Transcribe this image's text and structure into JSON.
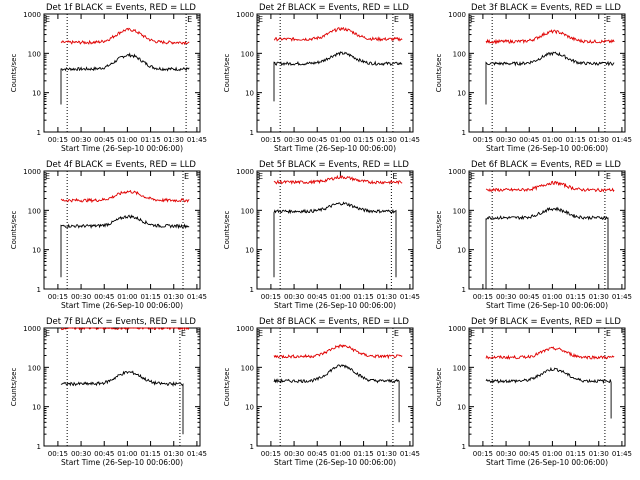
{
  "colors": {
    "events": "#000000",
    "lld": "#e00000",
    "axes": "#000000"
  },
  "chart_data": [
    {
      "type": "line",
      "title": "Det 1f BLACK = Events, RED = LLD",
      "xlabel": "Start Time (26-Sep-10 00:06:00)",
      "ylabel": "Counts/sec",
      "xticks": [
        "00:15",
        "00:30",
        "00:45",
        "01:00",
        "01:15",
        "01:30",
        "01:45"
      ],
      "yticks": [
        "1",
        "10",
        "100",
        "1000"
      ],
      "yscale": "log",
      "ylim": [
        1,
        1000
      ],
      "xlim_minutes": [
        6,
        107
      ],
      "vlines_minutes": [
        21,
        98
      ],
      "annotation_left": "E",
      "annotation_right": "E",
      "series": [
        {
          "name": "Events",
          "baseline": 40,
          "bump": 90,
          "start": 17,
          "end": 100,
          "drop_start": 5,
          "drop_end": null
        },
        {
          "name": "LLD",
          "baseline": 190,
          "bump": 400,
          "start": 17,
          "end": 100,
          "drop_start": null,
          "drop_end": null
        }
      ]
    },
    {
      "type": "line",
      "title": "Det 2f BLACK = Events, RED = LLD",
      "xlabel": "Start Time (26-Sep-10 00:06:00)",
      "ylabel": "Counts/sec",
      "xticks": [
        "00:15",
        "00:30",
        "00:45",
        "01:00",
        "01:15",
        "01:30",
        "01:45"
      ],
      "yticks": [
        "1",
        "10",
        "100",
        "1000"
      ],
      "yscale": "log",
      "ylim": [
        1,
        1000
      ],
      "xlim_minutes": [
        6,
        107
      ],
      "vlines_minutes": [
        21,
        94
      ],
      "annotation_left": "E",
      "annotation_right": "E",
      "series": [
        {
          "name": "Events",
          "baseline": 55,
          "bump": 100,
          "start": 17,
          "end": 100,
          "drop_start": 6,
          "drop_end": null
        },
        {
          "name": "LLD",
          "baseline": 230,
          "bump": 420,
          "start": 17,
          "end": 100,
          "drop_start": null,
          "drop_end": null
        }
      ]
    },
    {
      "type": "line",
      "title": "Det 3f BLACK = Events, RED = LLD",
      "xlabel": "Start Time (26-Sep-10 00:06:00)",
      "ylabel": "Counts/sec",
      "xticks": [
        "00:15",
        "00:30",
        "00:45",
        "01:00",
        "01:15",
        "01:30",
        "01:45"
      ],
      "yticks": [
        "1",
        "10",
        "100",
        "1000"
      ],
      "yscale": "log",
      "ylim": [
        1,
        1000
      ],
      "xlim_minutes": [
        6,
        107
      ],
      "vlines_minutes": [
        21,
        94
      ],
      "annotation_left": "E",
      "annotation_right": "E",
      "series": [
        {
          "name": "Events",
          "baseline": 55,
          "bump": 100,
          "start": 17,
          "end": 100,
          "drop_start": 5,
          "drop_end": null
        },
        {
          "name": "LLD",
          "baseline": 200,
          "bump": 360,
          "start": 17,
          "end": 100,
          "drop_start": null,
          "drop_end": null
        }
      ]
    },
    {
      "type": "line",
      "title": "Det 4f BLACK = Events, RED = LLD",
      "xlabel": "Start Time (26-Sep-10 00:06:00)",
      "ylabel": "Counts/sec",
      "xticks": [
        "00:15",
        "00:30",
        "00:45",
        "01:00",
        "01:15",
        "01:30",
        "01:45"
      ],
      "yticks": [
        "1",
        "10",
        "100",
        "1000"
      ],
      "yscale": "log",
      "ylim": [
        1,
        1000
      ],
      "xlim_minutes": [
        6,
        107
      ],
      "vlines_minutes": [
        21,
        96
      ],
      "annotation_left": "E",
      "annotation_right": "E",
      "series": [
        {
          "name": "Events",
          "baseline": 40,
          "bump": 70,
          "start": 17,
          "end": 100,
          "drop_start": 2,
          "drop_end": null
        },
        {
          "name": "LLD",
          "baseline": 180,
          "bump": 300,
          "start": 17,
          "end": 100,
          "drop_start": null,
          "drop_end": null
        }
      ]
    },
    {
      "type": "line",
      "title": "Det 5f BLACK = Events, RED = LLD",
      "xlabel": "Start Time (26-Sep-10 00:06:00)",
      "ylabel": "Counts/sec",
      "xticks": [
        "00:15",
        "00:30",
        "00:45",
        "01:00",
        "01:15",
        "01:30",
        "01:45"
      ],
      "yticks": [
        "1",
        "10",
        "100",
        "1000"
      ],
      "yscale": "log",
      "ylim": [
        1,
        1000
      ],
      "xlim_minutes": [
        6,
        107
      ],
      "vlines_minutes": [
        21,
        93
      ],
      "annotation_left": "E",
      "annotation_right": "E",
      "series": [
        {
          "name": "Events",
          "baseline": 95,
          "bump": 150,
          "start": 17,
          "end": 96,
          "drop_start": 2,
          "drop_end": 2
        },
        {
          "name": "LLD",
          "baseline": 520,
          "bump": 700,
          "start": 17,
          "end": 100,
          "drop_start": null,
          "drop_end": null
        }
      ]
    },
    {
      "type": "line",
      "title": "Det 6f BLACK = Events, RED = LLD",
      "xlabel": "Start Time (26-Sep-10 00:06:00)",
      "ylabel": "Counts/sec",
      "xticks": [
        "00:15",
        "00:30",
        "00:45",
        "01:00",
        "01:15",
        "01:30",
        "01:45"
      ],
      "yticks": [
        "1",
        "10",
        "100",
        "1000"
      ],
      "yscale": "log",
      "ylim": [
        1,
        1000
      ],
      "xlim_minutes": [
        6,
        107
      ],
      "vlines_minutes": [
        21,
        94
      ],
      "annotation_left": "E",
      "annotation_right": "E",
      "series": [
        {
          "name": "Events",
          "baseline": 65,
          "bump": 110,
          "start": 17,
          "end": 96,
          "drop_start": 1,
          "drop_end": 1
        },
        {
          "name": "LLD",
          "baseline": 330,
          "bump": 500,
          "start": 17,
          "end": 100,
          "drop_start": null,
          "drop_end": null
        }
      ]
    },
    {
      "type": "line",
      "title": "Det 7f BLACK = Events, RED = LLD",
      "xlabel": "Start Time (26-Sep-10 00:06:00)",
      "ylabel": "Counts/sec",
      "xticks": [
        "00:15",
        "00:30",
        "00:45",
        "01:00",
        "01:15",
        "01:30",
        "01:45"
      ],
      "yticks": [
        "1",
        "10",
        "100",
        "1000"
      ],
      "yscale": "log",
      "ylim": [
        1,
        1000
      ],
      "xlim_minutes": [
        6,
        107
      ],
      "vlines_minutes": [
        21,
        94
      ],
      "annotation_left": "E",
      "annotation_right": "E",
      "series": [
        {
          "name": "Events",
          "baseline": 38,
          "bump": 75,
          "start": 17,
          "end": 96,
          "drop_start": null,
          "drop_end": 2
        },
        {
          "name": "LLD",
          "baseline": 1000,
          "bump": 1000,
          "start": 17,
          "end": 100,
          "drop_start": null,
          "drop_end": null
        }
      ]
    },
    {
      "type": "line",
      "title": "Det 8f BLACK = Events, RED = LLD",
      "xlabel": "Start Time (26-Sep-10 00:06:00)",
      "ylabel": "Counts/sec",
      "xticks": [
        "00:15",
        "00:30",
        "00:45",
        "01:00",
        "01:15",
        "01:30",
        "01:45"
      ],
      "yticks": [
        "1",
        "10",
        "100",
        "1000"
      ],
      "yscale": "log",
      "ylim": [
        1,
        1000
      ],
      "xlim_minutes": [
        6,
        107
      ],
      "vlines_minutes": [
        21,
        94
      ],
      "annotation_left": "E",
      "annotation_right": "E",
      "series": [
        {
          "name": "Events",
          "baseline": 45,
          "bump": 110,
          "start": 17,
          "end": 98,
          "drop_start": null,
          "drop_end": 4
        },
        {
          "name": "LLD",
          "baseline": 190,
          "bump": 350,
          "start": 17,
          "end": 100,
          "drop_start": null,
          "drop_end": null
        }
      ]
    },
    {
      "type": "line",
      "title": "Det 9f BLACK = Events, RED = LLD",
      "xlabel": "Start Time (26-Sep-10 00:06:00)",
      "ylabel": "Counts/sec",
      "xticks": [
        "00:15",
        "00:30",
        "00:45",
        "01:00",
        "01:15",
        "01:30",
        "01:45"
      ],
      "yticks": [
        "1",
        "10",
        "100",
        "1000"
      ],
      "yscale": "log",
      "ylim": [
        1,
        1000
      ],
      "xlim_minutes": [
        6,
        107
      ],
      "vlines_minutes": [
        21,
        94
      ],
      "annotation_left": "E",
      "annotation_right": "E",
      "series": [
        {
          "name": "Events",
          "baseline": 45,
          "bump": 90,
          "start": 17,
          "end": 98,
          "drop_start": null,
          "drop_end": 5
        },
        {
          "name": "LLD",
          "baseline": 180,
          "bump": 300,
          "start": 17,
          "end": 100,
          "drop_start": null,
          "drop_end": null
        }
      ]
    }
  ]
}
